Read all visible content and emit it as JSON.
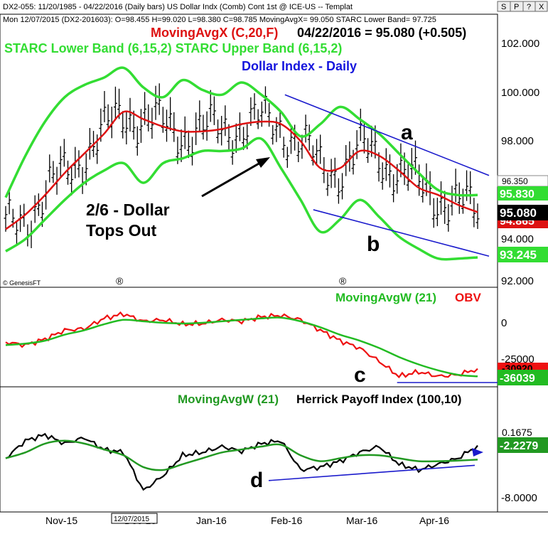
{
  "header": {
    "line1": "DX2-055: 11/20/1985 - 04/22/2016  (Daily bars)  US Dollar Indx (Comb) Cont 1st @ ICE-US  --  Templat",
    "line2": "Mon   12/07/2015 (DX2-201603):  O=98.455  H=99.020  L=98.380  C=98.785  MovingAvgX= 99.050  STARC Lower Band= 97.725",
    "toolbar_buttons": [
      "S",
      "P",
      "?",
      "X"
    ]
  },
  "colors": {
    "price_bars": "#000000",
    "moving_avg": "#dd1111",
    "starc_bands": "#33dd33",
    "trendlines": "#1a1acc",
    "obv": "#ee1111",
    "ma_obv": "#22bb22",
    "hpi": "#000000",
    "ma_hpi": "#229922",
    "title": "#1515dd"
  },
  "panel_price": {
    "ma_label": "MovingAvgX (C,20,F)",
    "ma_value": "04/22/2016 = 95.080 (+0.505)",
    "bands_label": "STARC Lower Band (6,15,2)  STARC Upper Band (6,15,2)",
    "title": "Dollar Index - Daily",
    "annotation": [
      "2/6 - Dollar",
      "Tops Out"
    ],
    "letter_a": "a",
    "letter_b": "b",
    "credit": "© GenesisFT",
    "marker": "®",
    "y_ticks": [
      "102.000",
      "100.000",
      "98.000",
      "94.000",
      "92.000"
    ],
    "callouts": {
      "upper_band_end": "96.350",
      "upper_band": "95.830",
      "ma": "95.080",
      "ma_hidden": "94.865",
      "lower_band": "93.245"
    }
  },
  "panel_obv": {
    "label_ma": "MovingAvgW (21)",
    "label_obv": "OBV",
    "letter_c": "c",
    "y_ticks": [
      "0",
      "-25000"
    ],
    "callouts": {
      "obv": "-30920",
      "ma": "-36039"
    }
  },
  "panel_hpi": {
    "label_ma": "MovingAvgW (21)",
    "label_hpi": "Herrick Payoff Index (100,10)",
    "letter_d": "d",
    "y_ticks": [
      "-8.0000"
    ],
    "callouts": {
      "hpi": "0.1675",
      "ma": "-2.2279"
    }
  },
  "x_axis": {
    "ticks": [
      "Nov-15",
      "Dec-15",
      "Jan-16",
      "Feb-16",
      "Mar-16",
      "Apr-16"
    ],
    "cursor_date": "12/07/2015"
  },
  "chart_data": [
    {
      "type": "line",
      "title": "Dollar Index - Daily",
      "ylim": [
        92.0,
        103.0
      ],
      "x": [
        "Oct-15",
        "Oct-15",
        "Nov-15",
        "Nov-15",
        "Nov-15",
        "Nov-15",
        "Dec-15",
        "Dec-15",
        "Dec-15",
        "Dec-15",
        "Jan-16",
        "Jan-16",
        "Jan-16",
        "Jan-16",
        "Feb-16",
        "Feb-16",
        "Feb-16",
        "Feb-16",
        "Mar-16",
        "Mar-16",
        "Mar-16",
        "Mar-16",
        "Apr-16",
        "Apr-16",
        "Apr-16"
      ],
      "series": [
        {
          "name": "MovingAvgX (C,20,F)",
          "values": [
            94.4,
            95.0,
            95.8,
            96.7,
            97.5,
            98.3,
            99.2,
            98.9,
            98.6,
            98.4,
            98.4,
            98.5,
            98.7,
            98.8,
            98.7,
            98.0,
            96.9,
            96.9,
            97.6,
            97.4,
            96.8,
            96.1,
            95.8,
            95.4,
            95.1
          ]
        },
        {
          "name": "STARC Upper Band (6,15,2)",
          "values": [
            95.7,
            97.4,
            98.8,
            99.8,
            100.3,
            100.6,
            101.0,
            100.2,
            99.8,
            100.5,
            100.1,
            99.9,
            100.4,
            99.9,
            99.2,
            98.2,
            98.7,
            99.4,
            98.9,
            98.3,
            97.5,
            96.7,
            96.0,
            95.8,
            95.8
          ]
        },
        {
          "name": "STARC Lower Band (6,15,2)",
          "values": [
            93.5,
            94.0,
            94.8,
            95.6,
            96.3,
            96.8,
            97.1,
            96.3,
            97.1,
            97.3,
            97.6,
            97.6,
            97.7,
            98.1,
            96.9,
            95.6,
            94.3,
            94.8,
            95.6,
            94.9,
            94.1,
            93.6,
            93.2,
            93.2,
            93.25
          ]
        }
      ],
      "price_bars": {
        "first_close": 94.1,
        "high": 100.9,
        "high_date": "Dec-15",
        "last_close": 95.08
      },
      "trendline_a": {
        "from": [
          "Feb-16",
          99.9
        ],
        "to": [
          "Apr-16",
          96.6
        ]
      },
      "trendline_b": {
        "from": [
          "Feb-16",
          95.2
        ],
        "to": [
          "Apr-16",
          93.3
        ]
      }
    },
    {
      "type": "line",
      "series": [
        {
          "name": "OBV",
          "values": [
            -13000,
            -15000,
            -11000,
            -5000,
            -4000,
            3000,
            6000,
            1000,
            2000,
            -1000,
            -500,
            2000,
            1000,
            4000,
            5000,
            2000,
            -5000,
            -12000,
            -17000,
            -26000,
            -36000,
            -33000,
            -36000,
            -35000,
            -30920
          ]
        },
        {
          "name": "MovingAvgW (21)",
          "values": [
            -15000,
            -14000,
            -12000,
            -8000,
            -5000,
            -1000,
            2000,
            1000,
            0,
            -500,
            0,
            1000,
            2000,
            3000,
            3500,
            1000,
            -3000,
            -8000,
            -12000,
            -17000,
            -23000,
            -28000,
            -32000,
            -35000,
            -36039
          ]
        }
      ]
    },
    {
      "type": "line",
      "series": [
        {
          "name": "Herrick Payoff Index (100,10)",
          "values": [
            -2.0,
            1.0,
            2.0,
            0.5,
            1.5,
            -0.5,
            -1.0,
            -7.5,
            -5.0,
            -1.5,
            -1.0,
            0.0,
            -0.8,
            0.5,
            1.0,
            -4.0,
            -3.5,
            -2.5,
            -1.0,
            0.0,
            -3.0,
            -4.0,
            -3.0,
            -2.0,
            0.1675
          ]
        },
        {
          "name": "MovingAvgW (21)",
          "values": [
            -2.0,
            -1.0,
            0.5,
            1.0,
            0.5,
            -0.5,
            -1.5,
            -3.5,
            -4.0,
            -3.0,
            -2.0,
            -1.0,
            -0.5,
            0.0,
            0.3,
            -1.5,
            -2.5,
            -2.0,
            -1.5,
            -1.5,
            -2.0,
            -2.5,
            -2.5,
            -2.4,
            -2.2279
          ]
        }
      ],
      "trendline_d": {
        "from": [
          "Feb-16",
          -5.8
        ],
        "to": [
          "Apr-16",
          -3.2
        ]
      }
    }
  ]
}
